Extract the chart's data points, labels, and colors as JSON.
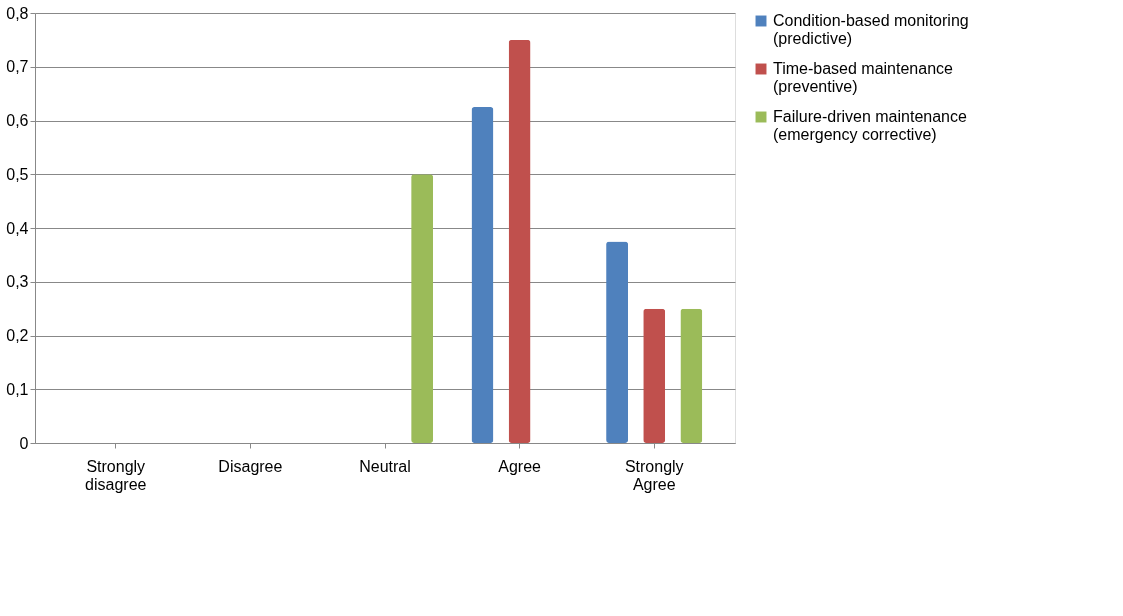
{
  "chart_data": {
    "type": "bar",
    "categories": [
      "Strongly disagree",
      "Disagree",
      "Neutral",
      "Agree",
      "Strongly Agree"
    ],
    "series": [
      {
        "name": "Condition-based monitoring (predictive)",
        "color": "#4f81bd",
        "values": [
          0,
          0,
          0,
          0.625,
          0.375
        ]
      },
      {
        "name": "Time-based maintenance (preventive)",
        "color": "#c0504d",
        "values": [
          0,
          0,
          0,
          0.75,
          0.25
        ]
      },
      {
        "name": "Failure-driven maintenance (emergency corrective)",
        "color": "#9bbb59",
        "values": [
          0,
          0,
          0.5,
          0,
          0.25
        ]
      }
    ],
    "ylim": [
      0,
      0.8
    ],
    "yticks": [
      {
        "value": 0,
        "label": "0"
      },
      {
        "value": 0.1,
        "label": "0,1"
      },
      {
        "value": 0.2,
        "label": "0,2"
      },
      {
        "value": 0.3,
        "label": "0,3"
      },
      {
        "value": 0.4,
        "label": "0,4"
      },
      {
        "value": 0.5,
        "label": "0,5"
      },
      {
        "value": 0.6,
        "label": "0,6"
      },
      {
        "value": 0.7,
        "label": "0,7"
      },
      {
        "value": 0.8,
        "label": "0,8"
      }
    ],
    "grid": "y",
    "legend": "right"
  }
}
